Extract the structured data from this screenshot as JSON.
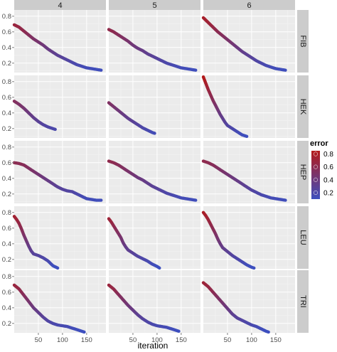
{
  "chart_data": {
    "type": "scatter",
    "xlabel": "iteration",
    "ylabel": "",
    "col_facets": [
      "4",
      "5",
      "6"
    ],
    "row_facets": [
      "FIB",
      "HEK",
      "HEP",
      "LEU",
      "TRI"
    ],
    "xlim": [
      0,
      190
    ],
    "ylim": [
      0.08,
      0.88
    ],
    "x_ticks": [
      50,
      100,
      150
    ],
    "y_ticks": [
      0.2,
      0.4,
      0.6,
      0.8
    ],
    "grid": true,
    "legend": {
      "title": "error",
      "position": "right",
      "values": [
        0.2,
        0.4,
        0.6,
        0.8
      ],
      "labels": [
        "0.2",
        "0.4",
        "0.6",
        "0.8"
      ]
    },
    "color_scale": {
      "low": "#3d4fbf",
      "high": "#b41a1a",
      "domain": [
        0.1,
        0.85
      ]
    },
    "colors": {
      "panel_bg": "#ebebeb",
      "strip_bg": "#cccccc",
      "grid": "#ffffff"
    },
    "panels": [
      {
        "row": "FIB",
        "col": "4",
        "points": [
          [
            0,
            0.69
          ],
          [
            10,
            0.66
          ],
          [
            20,
            0.61
          ],
          [
            30,
            0.56
          ],
          [
            40,
            0.51
          ],
          [
            50,
            0.47
          ],
          [
            60,
            0.43
          ],
          [
            70,
            0.38
          ],
          [
            80,
            0.34
          ],
          [
            90,
            0.3
          ],
          [
            100,
            0.27
          ],
          [
            110,
            0.24
          ],
          [
            120,
            0.21
          ],
          [
            130,
            0.18
          ],
          [
            140,
            0.16
          ],
          [
            150,
            0.14
          ],
          [
            160,
            0.13
          ],
          [
            170,
            0.12
          ],
          [
            180,
            0.11
          ]
        ]
      },
      {
        "row": "FIB",
        "col": "5",
        "points": [
          [
            0,
            0.63
          ],
          [
            10,
            0.6
          ],
          [
            20,
            0.56
          ],
          [
            30,
            0.52
          ],
          [
            40,
            0.48
          ],
          [
            50,
            0.43
          ],
          [
            60,
            0.39
          ],
          [
            70,
            0.36
          ],
          [
            80,
            0.32
          ],
          [
            90,
            0.29
          ],
          [
            100,
            0.26
          ],
          [
            110,
            0.23
          ],
          [
            120,
            0.2
          ],
          [
            130,
            0.18
          ],
          [
            140,
            0.16
          ],
          [
            150,
            0.14
          ],
          [
            160,
            0.13
          ],
          [
            170,
            0.12
          ],
          [
            180,
            0.11
          ]
        ]
      },
      {
        "row": "FIB",
        "col": "6",
        "points": [
          [
            0,
            0.78
          ],
          [
            10,
            0.72
          ],
          [
            20,
            0.66
          ],
          [
            30,
            0.6
          ],
          [
            40,
            0.55
          ],
          [
            50,
            0.5
          ],
          [
            60,
            0.45
          ],
          [
            70,
            0.4
          ],
          [
            80,
            0.35
          ],
          [
            90,
            0.31
          ],
          [
            100,
            0.27
          ],
          [
            110,
            0.23
          ],
          [
            120,
            0.2
          ],
          [
            130,
            0.17
          ],
          [
            140,
            0.15
          ],
          [
            150,
            0.13
          ],
          [
            160,
            0.12
          ],
          [
            170,
            0.11
          ]
        ]
      },
      {
        "row": "HEK",
        "col": "4",
        "points": [
          [
            0,
            0.55
          ],
          [
            10,
            0.51
          ],
          [
            20,
            0.46
          ],
          [
            30,
            0.4
          ],
          [
            40,
            0.34
          ],
          [
            50,
            0.29
          ],
          [
            60,
            0.25
          ],
          [
            70,
            0.22
          ],
          [
            80,
            0.2
          ],
          [
            85,
            0.19
          ]
        ]
      },
      {
        "row": "HEK",
        "col": "5",
        "points": [
          [
            0,
            0.53
          ],
          [
            10,
            0.48
          ],
          [
            20,
            0.43
          ],
          [
            30,
            0.38
          ],
          [
            40,
            0.33
          ],
          [
            50,
            0.29
          ],
          [
            60,
            0.25
          ],
          [
            70,
            0.21
          ],
          [
            80,
            0.18
          ],
          [
            90,
            0.15
          ],
          [
            95,
            0.14
          ]
        ]
      },
      {
        "row": "HEK",
        "col": "6",
        "points": [
          [
            0,
            0.86
          ],
          [
            5,
            0.78
          ],
          [
            10,
            0.7
          ],
          [
            15,
            0.63
          ],
          [
            20,
            0.56
          ],
          [
            25,
            0.5
          ],
          [
            30,
            0.44
          ],
          [
            35,
            0.38
          ],
          [
            40,
            0.33
          ],
          [
            45,
            0.28
          ],
          [
            50,
            0.24
          ],
          [
            60,
            0.2
          ],
          [
            70,
            0.16
          ],
          [
            80,
            0.12
          ],
          [
            90,
            0.1
          ]
        ]
      },
      {
        "row": "HEP",
        "col": "4",
        "points": [
          [
            0,
            0.6
          ],
          [
            10,
            0.59
          ],
          [
            20,
            0.57
          ],
          [
            30,
            0.53
          ],
          [
            40,
            0.49
          ],
          [
            50,
            0.45
          ],
          [
            60,
            0.41
          ],
          [
            70,
            0.37
          ],
          [
            80,
            0.33
          ],
          [
            90,
            0.29
          ],
          [
            100,
            0.26
          ],
          [
            110,
            0.24
          ],
          [
            120,
            0.23
          ],
          [
            130,
            0.2
          ],
          [
            140,
            0.17
          ],
          [
            150,
            0.14
          ],
          [
            160,
            0.13
          ],
          [
            170,
            0.12
          ],
          [
            180,
            0.12
          ]
        ]
      },
      {
        "row": "HEP",
        "col": "5",
        "points": [
          [
            0,
            0.62
          ],
          [
            10,
            0.6
          ],
          [
            20,
            0.57
          ],
          [
            30,
            0.53
          ],
          [
            40,
            0.49
          ],
          [
            50,
            0.45
          ],
          [
            60,
            0.41
          ],
          [
            70,
            0.38
          ],
          [
            80,
            0.34
          ],
          [
            90,
            0.3
          ],
          [
            100,
            0.27
          ],
          [
            110,
            0.24
          ],
          [
            120,
            0.21
          ],
          [
            130,
            0.19
          ],
          [
            140,
            0.17
          ],
          [
            150,
            0.15
          ],
          [
            160,
            0.14
          ],
          [
            170,
            0.13
          ],
          [
            180,
            0.12
          ]
        ]
      },
      {
        "row": "HEP",
        "col": "6",
        "points": [
          [
            0,
            0.62
          ],
          [
            10,
            0.6
          ],
          [
            20,
            0.57
          ],
          [
            30,
            0.53
          ],
          [
            40,
            0.49
          ],
          [
            50,
            0.45
          ],
          [
            60,
            0.41
          ],
          [
            70,
            0.37
          ],
          [
            80,
            0.33
          ],
          [
            90,
            0.29
          ],
          [
            100,
            0.25
          ],
          [
            110,
            0.22
          ],
          [
            120,
            0.19
          ],
          [
            130,
            0.17
          ],
          [
            140,
            0.15
          ],
          [
            150,
            0.14
          ],
          [
            160,
            0.13
          ],
          [
            170,
            0.12
          ]
        ]
      },
      {
        "row": "LEU",
        "col": "4",
        "points": [
          [
            0,
            0.75
          ],
          [
            5,
            0.71
          ],
          [
            10,
            0.66
          ],
          [
            15,
            0.59
          ],
          [
            20,
            0.51
          ],
          [
            25,
            0.44
          ],
          [
            30,
            0.37
          ],
          [
            35,
            0.31
          ],
          [
            40,
            0.27
          ],
          [
            50,
            0.25
          ],
          [
            60,
            0.22
          ],
          [
            70,
            0.18
          ],
          [
            80,
            0.12
          ],
          [
            90,
            0.09
          ]
        ]
      },
      {
        "row": "LEU",
        "col": "5",
        "points": [
          [
            0,
            0.72
          ],
          [
            5,
            0.68
          ],
          [
            10,
            0.63
          ],
          [
            15,
            0.58
          ],
          [
            20,
            0.53
          ],
          [
            25,
            0.48
          ],
          [
            30,
            0.41
          ],
          [
            35,
            0.36
          ],
          [
            40,
            0.32
          ],
          [
            50,
            0.28
          ],
          [
            60,
            0.24
          ],
          [
            70,
            0.21
          ],
          [
            80,
            0.18
          ],
          [
            90,
            0.14
          ],
          [
            100,
            0.11
          ],
          [
            105,
            0.09
          ]
        ]
      },
      {
        "row": "LEU",
        "col": "6",
        "points": [
          [
            0,
            0.8
          ],
          [
            5,
            0.76
          ],
          [
            10,
            0.71
          ],
          [
            15,
            0.65
          ],
          [
            20,
            0.59
          ],
          [
            25,
            0.53
          ],
          [
            30,
            0.46
          ],
          [
            35,
            0.4
          ],
          [
            40,
            0.35
          ],
          [
            50,
            0.3
          ],
          [
            60,
            0.25
          ],
          [
            70,
            0.21
          ],
          [
            80,
            0.17
          ],
          [
            90,
            0.13
          ],
          [
            100,
            0.1
          ],
          [
            105,
            0.09
          ]
        ]
      },
      {
        "row": "TRI",
        "col": "4",
        "points": [
          [
            0,
            0.69
          ],
          [
            10,
            0.64
          ],
          [
            20,
            0.56
          ],
          [
            30,
            0.48
          ],
          [
            40,
            0.4
          ],
          [
            50,
            0.34
          ],
          [
            60,
            0.28
          ],
          [
            70,
            0.23
          ],
          [
            80,
            0.2
          ],
          [
            90,
            0.18
          ],
          [
            100,
            0.17
          ],
          [
            110,
            0.16
          ],
          [
            120,
            0.14
          ],
          [
            130,
            0.12
          ],
          [
            140,
            0.1
          ],
          [
            145,
            0.09
          ]
        ]
      },
      {
        "row": "TRI",
        "col": "5",
        "points": [
          [
            0,
            0.69
          ],
          [
            10,
            0.64
          ],
          [
            20,
            0.57
          ],
          [
            30,
            0.5
          ],
          [
            40,
            0.43
          ],
          [
            50,
            0.37
          ],
          [
            60,
            0.31
          ],
          [
            70,
            0.26
          ],
          [
            80,
            0.22
          ],
          [
            90,
            0.19
          ],
          [
            100,
            0.17
          ],
          [
            110,
            0.16
          ],
          [
            120,
            0.15
          ],
          [
            130,
            0.13
          ],
          [
            140,
            0.11
          ],
          [
            145,
            0.1
          ]
        ]
      },
      {
        "row": "TRI",
        "col": "6",
        "points": [
          [
            0,
            0.72
          ],
          [
            10,
            0.67
          ],
          [
            20,
            0.6
          ],
          [
            30,
            0.53
          ],
          [
            40,
            0.46
          ],
          [
            50,
            0.39
          ],
          [
            60,
            0.32
          ],
          [
            70,
            0.27
          ],
          [
            80,
            0.24
          ],
          [
            90,
            0.21
          ],
          [
            100,
            0.18
          ],
          [
            110,
            0.16
          ],
          [
            120,
            0.13
          ],
          [
            130,
            0.1
          ],
          [
            135,
            0.09
          ]
        ]
      }
    ]
  }
}
